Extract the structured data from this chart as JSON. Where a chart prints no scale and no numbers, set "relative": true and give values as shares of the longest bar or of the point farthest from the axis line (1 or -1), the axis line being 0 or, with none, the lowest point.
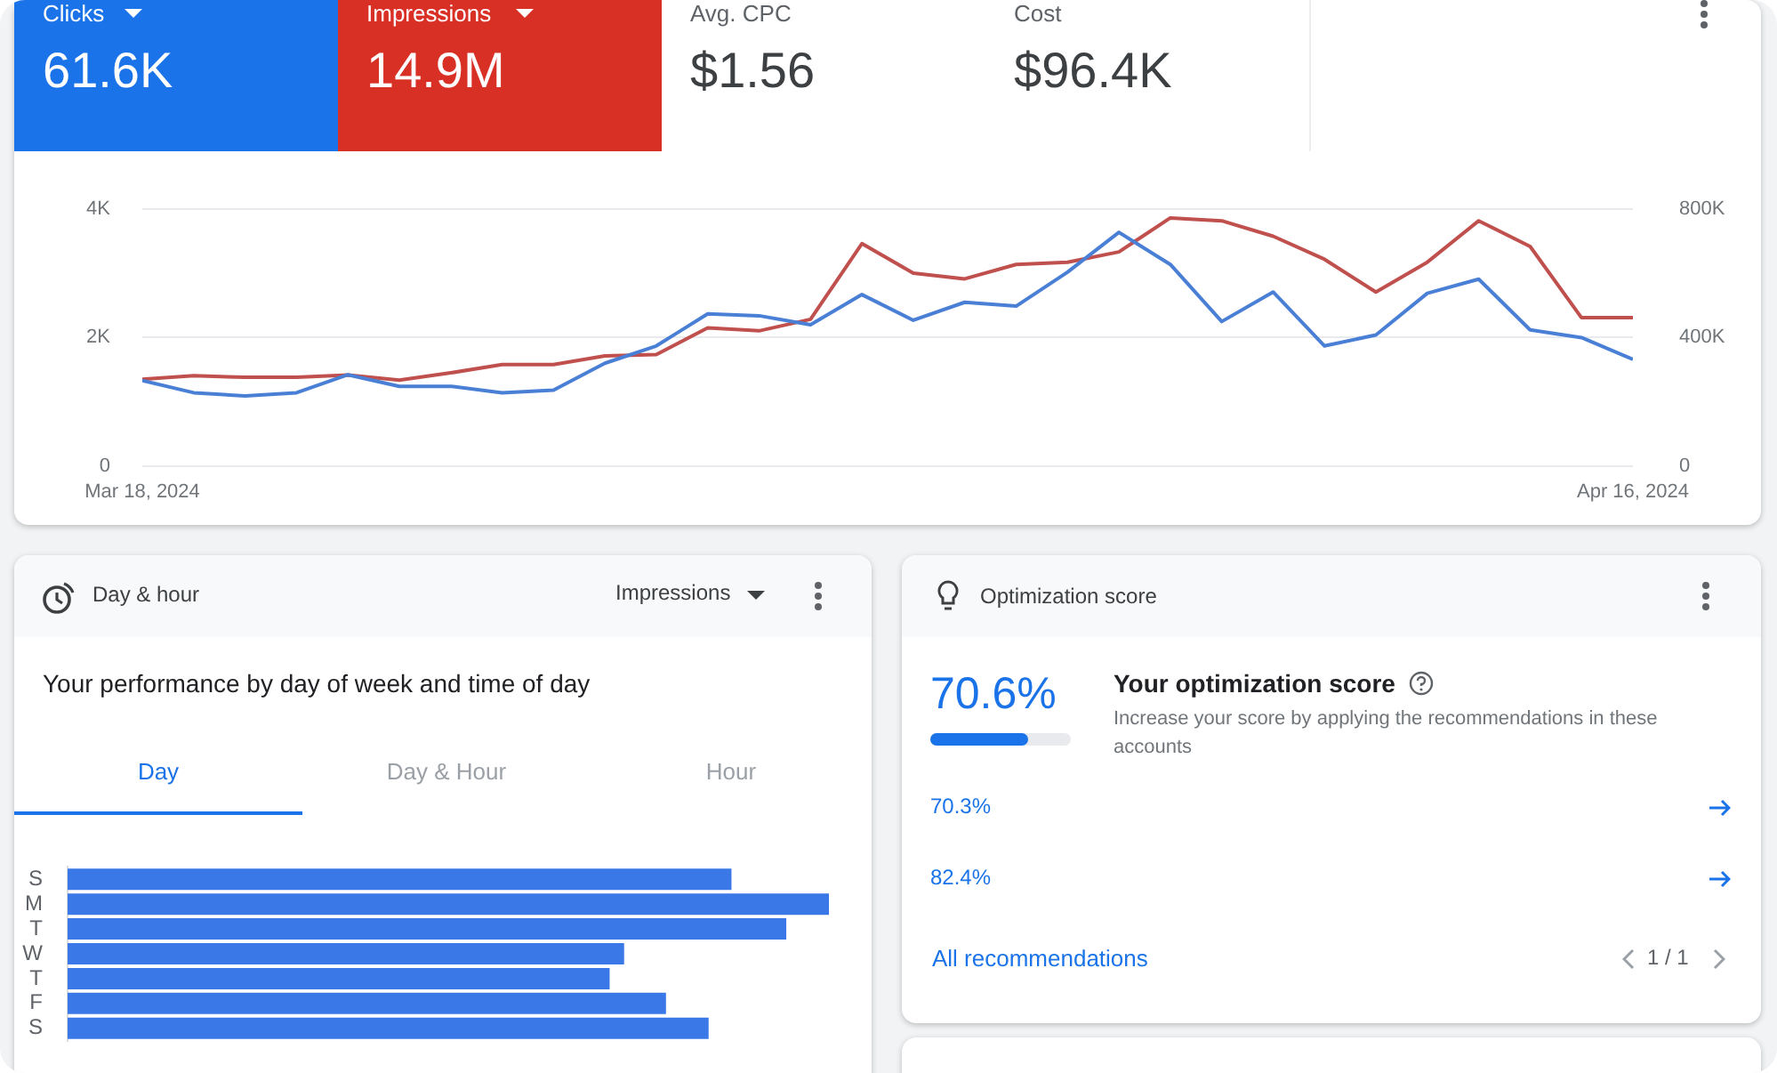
{
  "chart_data": [
    {
      "type": "other",
      "categories": [
        "Clicks",
        "Impressions",
        "Avg. CPC",
        "Cost"
      ],
      "value_labels": [
        "61.6K",
        "14.9M",
        "$1.56",
        "$96.4K"
      ],
      "colors": [
        "#1a73e8",
        "#d93025",
        null,
        null
      ]
    },
    {
      "type": "line",
      "x": [
        "2024-03-18",
        "2024-03-19",
        "2024-03-20",
        "2024-03-21",
        "2024-03-22",
        "2024-03-23",
        "2024-03-24",
        "2024-03-25",
        "2024-03-26",
        "2024-03-27",
        "2024-03-28",
        "2024-03-29",
        "2024-03-30",
        "2024-03-31",
        "2024-04-01",
        "2024-04-02",
        "2024-04-03",
        "2024-04-04",
        "2024-04-05",
        "2024-04-06",
        "2024-04-07",
        "2024-04-08",
        "2024-04-09",
        "2024-04-10",
        "2024-04-11",
        "2024-04-12",
        "2024-04-13",
        "2024-04-14",
        "2024-04-15",
        "2024-04-16"
      ],
      "series": [
        {
          "color": "#4a7fd6",
          "values": [
            1330,
            1140,
            1090,
            1140,
            1420,
            1240,
            1240,
            1140,
            1180,
            1600,
            1870,
            2370,
            2340,
            2200,
            2670,
            2270,
            2550,
            2490,
            3020,
            3640,
            3140,
            2250,
            2710,
            1870,
            2040,
            2690,
            2910,
            2120,
            2000,
            1660
          ]
        },
        {
          "color": "#c0504d",
          "axis": "y2",
          "values": [
            270000,
            281000,
            276000,
            276000,
            283000,
            267000,
            290000,
            316000,
            316000,
            343000,
            347000,
            430000,
            421000,
            457000,
            693000,
            601000,
            583000,
            628000,
            635000,
            667000,
            773000,
            764000,
            716000,
            644000,
            542000,
            635000,
            764000,
            684000,
            462000,
            462000
          ]
        }
      ],
      "xlim": [
        "2024-03-18",
        "2024-04-16"
      ],
      "xticks": [
        {
          "value": "2024-03-18",
          "label": "Mar 18, 2024"
        },
        {
          "value": "2024-04-16",
          "label": "Apr 16, 2024"
        }
      ],
      "ylim": [
        0,
        4000
      ],
      "yticks": [
        0,
        {
          "value": 2000,
          "label": "2K"
        },
        {
          "value": 4000,
          "label": "4K"
        }
      ],
      "y2lim": [
        0,
        800000
      ],
      "y2ticks": [
        0,
        {
          "value": 400000,
          "label": "400K"
        },
        {
          "value": 800000,
          "label": "800K"
        }
      ],
      "grid": "y",
      "marker": "none",
      "line_style": "solid"
    },
    {
      "type": "bar",
      "title": "Day & hour",
      "subtitle": "Your performance by day of week and time of day",
      "annotations": [
        "Impressions",
        "Day",
        "Day & Hour",
        "Hour"
      ],
      "orientation": "horizontal",
      "relative": true,
      "categories": [
        "S",
        "M",
        "T",
        "W",
        "T",
        "F",
        "S"
      ],
      "values": [
        0.872,
        1,
        0.944,
        0.731,
        0.712,
        0.786,
        0.842
      ],
      "color": "#3b78e7"
    },
    {
      "type": "other",
      "title": "Optimization score",
      "annotations": [
        "70.6%",
        "Your optimization score",
        "Increase your score by applying the recommendations in these accounts",
        "70.3%",
        "82.4%",
        "All recommendations",
        "1 / 1"
      ]
    }
  ]
}
